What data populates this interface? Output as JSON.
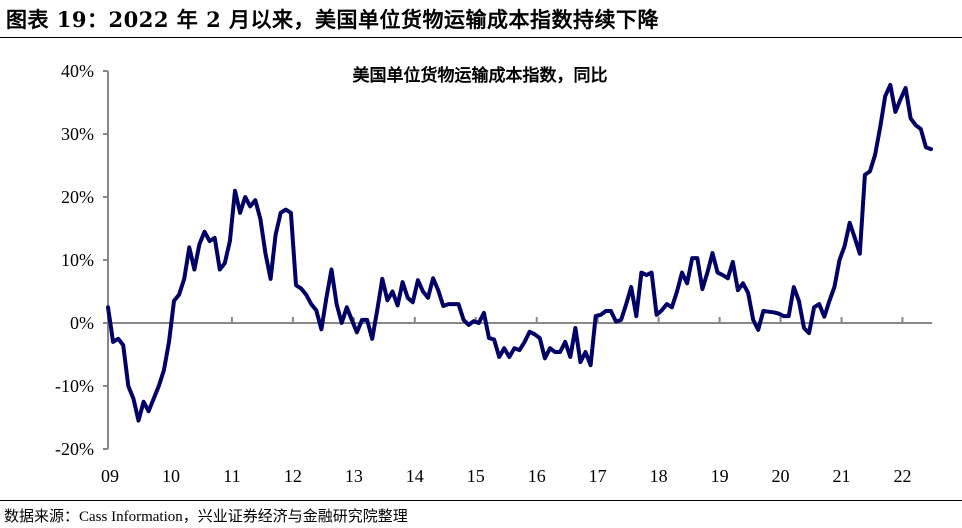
{
  "figure": {
    "title": "图表 19：2022 年 2 月以来，美国单位货物运输成本指数持续下降",
    "source": "数据来源：Cass Information，兴业证券经济与金融研究院整理"
  },
  "chart_data": {
    "type": "line",
    "title": "美国单位货物运输成本指数，同比",
    "xlabel": "",
    "ylabel": "",
    "ylim": [
      -20,
      40
    ],
    "y_ticks": [
      "40%",
      "30%",
      "20%",
      "10%",
      "0%",
      "-10%",
      "-20%"
    ],
    "y_tick_values": [
      40,
      30,
      20,
      10,
      0,
      -10,
      -20
    ],
    "x_ticks": [
      "09",
      "10",
      "11",
      "12",
      "13",
      "14",
      "15",
      "16",
      "17",
      "18",
      "19",
      "20",
      "21",
      "22"
    ],
    "grid": false,
    "legend": "none",
    "line_color": "#000066",
    "units": "%",
    "series": [
      {
        "monthly_by_year": [
          {
            "year": "09",
            "values": [
              2.5,
              -3,
              -2.5,
              -3.5,
              -10,
              -12,
              -15.5,
              -12.5,
              -14,
              -12,
              -10,
              -7.5
            ]
          },
          {
            "year": "10",
            "values": [
              -3,
              3.5,
              4.5,
              7,
              12,
              8.5,
              12.5,
              14.5,
              13,
              13.5,
              8.5,
              9.5
            ]
          },
          {
            "year": "11",
            "values": [
              13,
              21,
              17.5,
              20,
              18.5,
              19.5,
              16.5,
              11,
              7,
              14,
              17.5,
              18
            ]
          },
          {
            "year": "12",
            "values": [
              17.5,
              6,
              5.5,
              4.5,
              3,
              2,
              -1,
              4,
              8.5,
              3,
              0,
              2.5
            ]
          },
          {
            "year": "13",
            "values": [
              0.5,
              -1.5,
              0.5,
              0.5,
              -2.5,
              2,
              7,
              3.6,
              5,
              2.8,
              6.5,
              4
            ]
          },
          {
            "year": "14",
            "values": [
              3.3,
              6.8,
              5,
              4,
              7.1,
              5.2,
              2.7,
              3,
              3,
              3,
              0.5,
              -0.3
            ]
          },
          {
            "year": "15",
            "values": [
              0.3,
              0,
              1.6,
              -2.4,
              -2.6,
              -5.4,
              -4,
              -5.4,
              -4,
              -4.3,
              -3,
              -1.4
            ]
          },
          {
            "year": "16",
            "values": [
              -1.8,
              -2.4,
              -5.6,
              -4,
              -4.6,
              -4.6,
              -3,
              -5.4,
              -0.8,
              -6.2,
              -4.6,
              -6.7
            ]
          },
          {
            "year": "17",
            "values": [
              1.1,
              1.3,
              1.9,
              1.9,
              0.2,
              0.5,
              3,
              5.7,
              1.1,
              8,
              7.6,
              8
            ]
          },
          {
            "year": "18",
            "values": [
              1.3,
              2,
              3,
              2.5,
              5,
              8,
              6.3,
              10.3,
              10.3,
              5.4,
              8,
              11.1
            ]
          },
          {
            "year": "19",
            "values": [
              8,
              7.6,
              7.1,
              9.7,
              5.2,
              6.3,
              4.8,
              0.5,
              -1.1,
              1.9,
              1.8,
              1.7
            ]
          },
          {
            "year": "20",
            "values": [
              1.5,
              1.1,
              1.1,
              5.7,
              3.5,
              -0.8,
              -1.6,
              2.5,
              3,
              1,
              3.5,
              5.7
            ]
          },
          {
            "year": "21",
            "values": [
              10,
              12.2,
              15.9,
              13.5,
              11,
              23.5,
              24.1,
              26.7,
              31.1,
              36,
              37.8,
              33.5
            ]
          },
          {
            "year": "22",
            "values": [
              35.5,
              37.3,
              32.5,
              31.4,
              30.8,
              27.9,
              27.6
            ]
          }
        ]
      }
    ]
  }
}
